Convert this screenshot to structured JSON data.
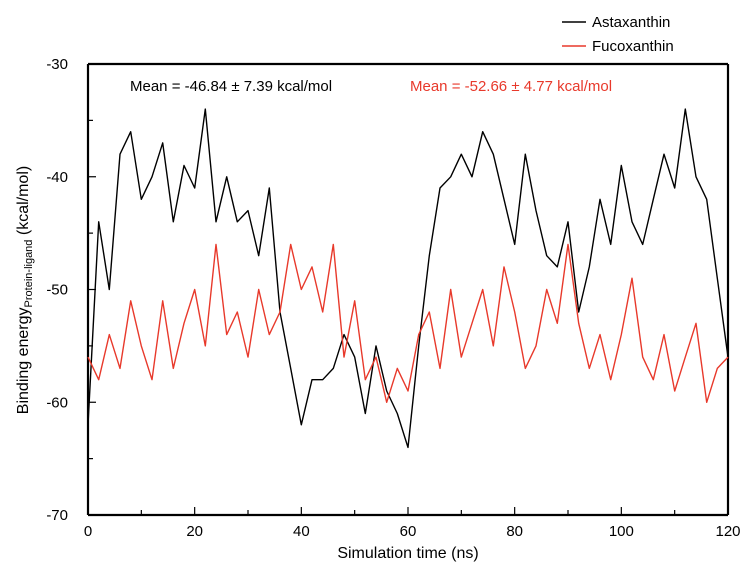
{
  "chart_data": {
    "type": "line",
    "title": "",
    "xlabel": "Simulation time (ns)",
    "ylabel": {
      "main": "Binding energy",
      "subscript": "Protein-ligand",
      "unit": " (kcal/mol)"
    },
    "xlim": [
      0,
      120
    ],
    "ylim": [
      -70,
      -30
    ],
    "x_ticks": [
      0,
      20,
      40,
      60,
      80,
      100,
      120
    ],
    "y_ticks": [
      -70,
      -60,
      -50,
      -40,
      -30
    ],
    "grid": false,
    "legend_position": "top-right",
    "annotations": [
      {
        "text": "Mean = -46.84 ± 7.39 kcal/mol",
        "color": "#000000"
      },
      {
        "text": "Mean = -52.66 ± 4.77 kcal/mol",
        "color": "#e8392b"
      }
    ],
    "series": [
      {
        "name": "Astaxanthin",
        "color": "#000000",
        "x": [
          0,
          2,
          4,
          6,
          8,
          10,
          12,
          14,
          16,
          18,
          20,
          22,
          24,
          26,
          28,
          30,
          32,
          34,
          36,
          38,
          40,
          42,
          44,
          46,
          48,
          50,
          52,
          54,
          56,
          58,
          60,
          62,
          64,
          66,
          68,
          70,
          72,
          74,
          76,
          78,
          80,
          82,
          84,
          86,
          88,
          90,
          92,
          94,
          96,
          98,
          100,
          102,
          104,
          106,
          108,
          110,
          112,
          114,
          116,
          118,
          120
        ],
        "y": [
          -62,
          -44,
          -50,
          -38,
          -36,
          -42,
          -40,
          -37,
          -44,
          -39,
          -41,
          -34,
          -44,
          -40,
          -44,
          -43,
          -47,
          -41,
          -52,
          -57,
          -62,
          -58,
          -58,
          -57,
          -54,
          -56,
          -61,
          -55,
          -59,
          -61,
          -64,
          -55,
          -47,
          -41,
          -40,
          -38,
          -40,
          -36,
          -38,
          -42,
          -46,
          -38,
          -43,
          -47,
          -48,
          -44,
          -52,
          -48,
          -42,
          -46,
          -39,
          -44,
          -46,
          -42,
          -38,
          -41,
          -34,
          -40,
          -42,
          -49,
          -56
        ]
      },
      {
        "name": "Fucoxanthin",
        "color": "#e8392b",
        "x": [
          0,
          2,
          4,
          6,
          8,
          10,
          12,
          14,
          16,
          18,
          20,
          22,
          24,
          26,
          28,
          30,
          32,
          34,
          36,
          38,
          40,
          42,
          44,
          46,
          48,
          50,
          52,
          54,
          56,
          58,
          60,
          62,
          64,
          66,
          68,
          70,
          72,
          74,
          76,
          78,
          80,
          82,
          84,
          86,
          88,
          90,
          92,
          94,
          96,
          98,
          100,
          102,
          104,
          106,
          108,
          110,
          112,
          114,
          116,
          118,
          120
        ],
        "y": [
          -56,
          -58,
          -54,
          -57,
          -51,
          -55,
          -58,
          -51,
          -57,
          -53,
          -50,
          -55,
          -46,
          -54,
          -52,
          -56,
          -50,
          -54,
          -52,
          -46,
          -50,
          -48,
          -52,
          -46,
          -56,
          -51,
          -58,
          -56,
          -60,
          -57,
          -59,
          -54,
          -52,
          -57,
          -50,
          -56,
          -53,
          -50,
          -55,
          -48,
          -52,
          -57,
          -55,
          -50,
          -53,
          -46,
          -53,
          -57,
          -54,
          -58,
          -54,
          -49,
          -56,
          -58,
          -54,
          -59,
          -56,
          -53,
          -60,
          -57,
          -56
        ]
      }
    ]
  }
}
